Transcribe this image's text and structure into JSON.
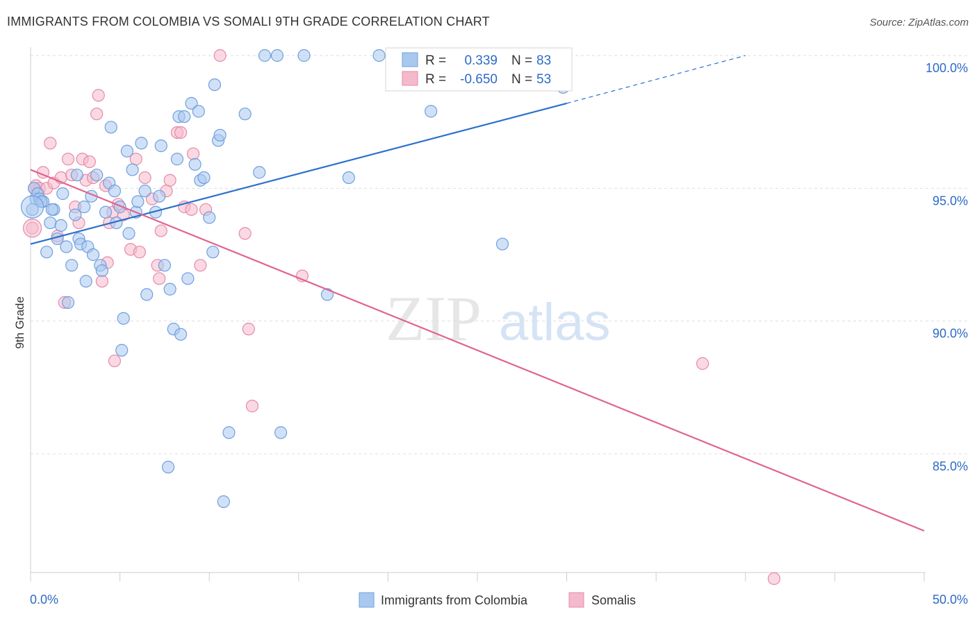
{
  "title": "IMMIGRANTS FROM COLOMBIA VS SOMALI 9TH GRADE CORRELATION CHART",
  "source": "Source: ZipAtlas.com",
  "watermark": {
    "zip": "ZIP",
    "atlas": "atlas"
  },
  "colors": {
    "blue_fill": "#a9c8f0",
    "blue_stroke": "#6f9fdc",
    "blue_line": "#2b6fcb",
    "pink_fill": "#f5b9cc",
    "pink_stroke": "#e58aa8",
    "pink_line": "#e0648f",
    "value_text": "#2d6ac6",
    "grid": "#dddddd"
  },
  "stats_legend": {
    "rows": [
      {
        "r_label": "R =",
        "r_value": "0.339",
        "n_label": "N =",
        "n_value": "83"
      },
      {
        "r_label": "R =",
        "r_value": "-0.650",
        "n_label": "N =",
        "n_value": "53"
      }
    ]
  },
  "bottom_legend": {
    "items": [
      "Immigrants from Colombia",
      "Somalis"
    ]
  },
  "chart_data": {
    "type": "scatter",
    "title": "IMMIGRANTS FROM COLOMBIA VS SOMALI 9TH GRADE CORRELATION CHART",
    "xlabel": "",
    "ylabel": "9th Grade",
    "xlim": [
      0,
      50
    ],
    "ylim": [
      80.5,
      100.7
    ],
    "x_tick_labels": [
      "0.0%",
      "50.0%"
    ],
    "y_ticks": [
      85,
      90,
      95,
      100
    ],
    "y_tick_labels": [
      "85.0%",
      "90.0%",
      "95.0%",
      "100.0%"
    ],
    "grid": true,
    "series": [
      {
        "name": "Immigrants from Colombia",
        "r": 0.339,
        "n": 83,
        "trend": {
          "x": [
            0,
            30
          ],
          "y": [
            92.9,
            98.2
          ],
          "dashed_to": [
            40,
            100
          ]
        },
        "points": [
          [
            0.1,
            94.2
          ],
          [
            0.2,
            95.0
          ],
          [
            0.3,
            94.6
          ],
          [
            0.4,
            94.8
          ],
          [
            0.5,
            94.6
          ],
          [
            0.7,
            94.5
          ],
          [
            0.9,
            92.6
          ],
          [
            1.1,
            93.7
          ],
          [
            1.3,
            94.2
          ],
          [
            1.5,
            93.1
          ],
          [
            1.7,
            93.6
          ],
          [
            1.8,
            94.8
          ],
          [
            2.0,
            92.8
          ],
          [
            2.1,
            90.7
          ],
          [
            2.3,
            92.1
          ],
          [
            2.5,
            94.0
          ],
          [
            2.7,
            93.1
          ],
          [
            2.8,
            92.9
          ],
          [
            3.0,
            94.3
          ],
          [
            3.1,
            91.5
          ],
          [
            3.2,
            92.8
          ],
          [
            3.4,
            94.7
          ],
          [
            3.5,
            92.5
          ],
          [
            3.7,
            95.5
          ],
          [
            3.9,
            92.1
          ],
          [
            4.0,
            91.9
          ],
          [
            4.2,
            94.1
          ],
          [
            4.4,
            95.2
          ],
          [
            4.5,
            97.3
          ],
          [
            4.7,
            94.9
          ],
          [
            4.8,
            93.7
          ],
          [
            5.0,
            94.3
          ],
          [
            5.1,
            88.9
          ],
          [
            5.2,
            90.1
          ],
          [
            5.4,
            96.4
          ],
          [
            5.5,
            93.3
          ],
          [
            5.7,
            95.7
          ],
          [
            5.9,
            94.1
          ],
          [
            6.0,
            94.5
          ],
          [
            6.2,
            96.7
          ],
          [
            6.4,
            94.9
          ],
          [
            6.5,
            91.0
          ],
          [
            7.0,
            94.1
          ],
          [
            7.2,
            94.7
          ],
          [
            7.3,
            96.6
          ],
          [
            7.5,
            92.1
          ],
          [
            7.7,
            84.5
          ],
          [
            7.8,
            91.2
          ],
          [
            8.0,
            89.7
          ],
          [
            8.2,
            96.1
          ],
          [
            8.3,
            97.7
          ],
          [
            8.4,
            89.5
          ],
          [
            8.6,
            97.7
          ],
          [
            8.8,
            91.6
          ],
          [
            9.0,
            98.2
          ],
          [
            9.2,
            95.9
          ],
          [
            9.4,
            97.9
          ],
          [
            9.5,
            95.3
          ],
          [
            9.7,
            95.4
          ],
          [
            10.0,
            93.9
          ],
          [
            10.2,
            92.6
          ],
          [
            10.3,
            98.9
          ],
          [
            10.5,
            96.8
          ],
          [
            10.6,
            97.0
          ],
          [
            10.8,
            83.2
          ],
          [
            11.1,
            85.8
          ],
          [
            12.0,
            97.8
          ],
          [
            12.8,
            95.6
          ],
          [
            13.1,
            100.0
          ],
          [
            13.8,
            100.0
          ],
          [
            14.0,
            85.8
          ],
          [
            15.3,
            100.0
          ],
          [
            16.6,
            91.0
          ],
          [
            17.8,
            95.4
          ],
          [
            19.5,
            100.0
          ],
          [
            20.5,
            100.0
          ],
          [
            22.4,
            97.9
          ],
          [
            26.4,
            92.9
          ],
          [
            27.5,
            100.0
          ],
          [
            29.8,
            98.8
          ],
          [
            0.6,
            94.5
          ],
          [
            1.2,
            94.2
          ],
          [
            2.6,
            95.5
          ]
        ]
      },
      {
        "name": "Somalis",
        "r": -0.65,
        "n": 53,
        "trend": {
          "x": [
            0,
            50
          ],
          "y": [
            95.7,
            82.1
          ]
        },
        "points": [
          [
            0.1,
            93.5
          ],
          [
            0.3,
            95.1
          ],
          [
            0.5,
            95.0
          ],
          [
            0.7,
            95.6
          ],
          [
            0.9,
            95.0
          ],
          [
            1.1,
            96.7
          ],
          [
            1.3,
            95.2
          ],
          [
            1.5,
            93.2
          ],
          [
            1.7,
            95.4
          ],
          [
            1.9,
            90.7
          ],
          [
            2.1,
            96.1
          ],
          [
            2.3,
            95.5
          ],
          [
            2.5,
            94.3
          ],
          [
            2.7,
            93.7
          ],
          [
            2.9,
            96.1
          ],
          [
            3.1,
            95.3
          ],
          [
            3.3,
            96.0
          ],
          [
            3.5,
            95.4
          ],
          [
            3.7,
            97.8
          ],
          [
            3.8,
            98.5
          ],
          [
            4.0,
            91.5
          ],
          [
            4.2,
            95.1
          ],
          [
            4.3,
            92.2
          ],
          [
            4.4,
            93.7
          ],
          [
            4.6,
            94.1
          ],
          [
            4.7,
            88.5
          ],
          [
            4.9,
            94.4
          ],
          [
            5.2,
            94.0
          ],
          [
            5.6,
            92.7
          ],
          [
            5.9,
            96.1
          ],
          [
            6.1,
            92.6
          ],
          [
            6.4,
            95.4
          ],
          [
            7.1,
            92.1
          ],
          [
            7.2,
            91.6
          ],
          [
            7.3,
            93.4
          ],
          [
            7.6,
            94.9
          ],
          [
            7.8,
            95.3
          ],
          [
            8.2,
            97.1
          ],
          [
            8.4,
            97.1
          ],
          [
            8.6,
            94.3
          ],
          [
            9.0,
            94.2
          ],
          [
            9.1,
            96.3
          ],
          [
            9.5,
            92.1
          ],
          [
            9.8,
            94.2
          ],
          [
            10.6,
            100.0
          ],
          [
            12.0,
            93.3
          ],
          [
            12.2,
            89.7
          ],
          [
            12.4,
            86.8
          ],
          [
            15.2,
            91.7
          ],
          [
            37.6,
            88.4
          ],
          [
            41.6,
            80.3
          ],
          [
            0.2,
            95.0
          ],
          [
            6.8,
            94.6
          ]
        ]
      }
    ]
  }
}
